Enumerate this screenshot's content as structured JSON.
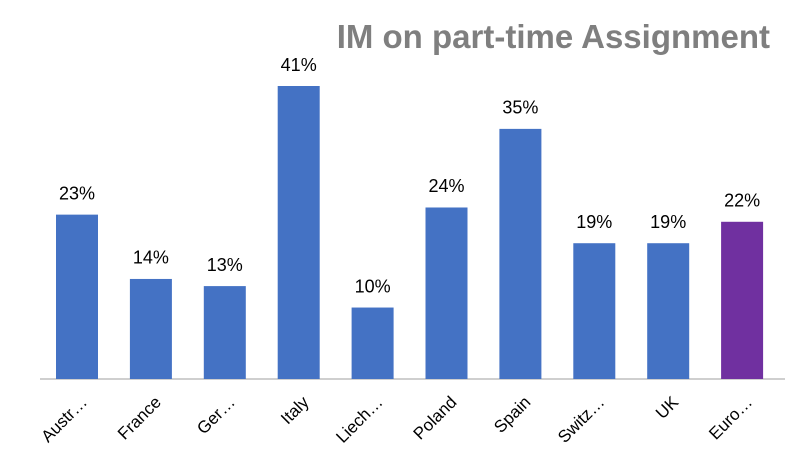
{
  "chart_data": {
    "type": "bar",
    "title": "IM on part-time Assignment",
    "categories": [
      "Austr…",
      "France",
      "Ger…",
      "Italy",
      "Liech…",
      "Poland",
      "Spain",
      "Switz…",
      "UK",
      "Euro…"
    ],
    "values": [
      23,
      14,
      13,
      41,
      10,
      24,
      35,
      19,
      19,
      22
    ],
    "value_labels": [
      "23%",
      "14%",
      "13%",
      "41%",
      "10%",
      "24%",
      "35%",
      "19%",
      "19%",
      "22%"
    ],
    "colors": [
      "#4472c4",
      "#4472c4",
      "#4472c4",
      "#4472c4",
      "#4472c4",
      "#4472c4",
      "#4472c4",
      "#4472c4",
      "#4472c4",
      "#7030a0"
    ]
  }
}
